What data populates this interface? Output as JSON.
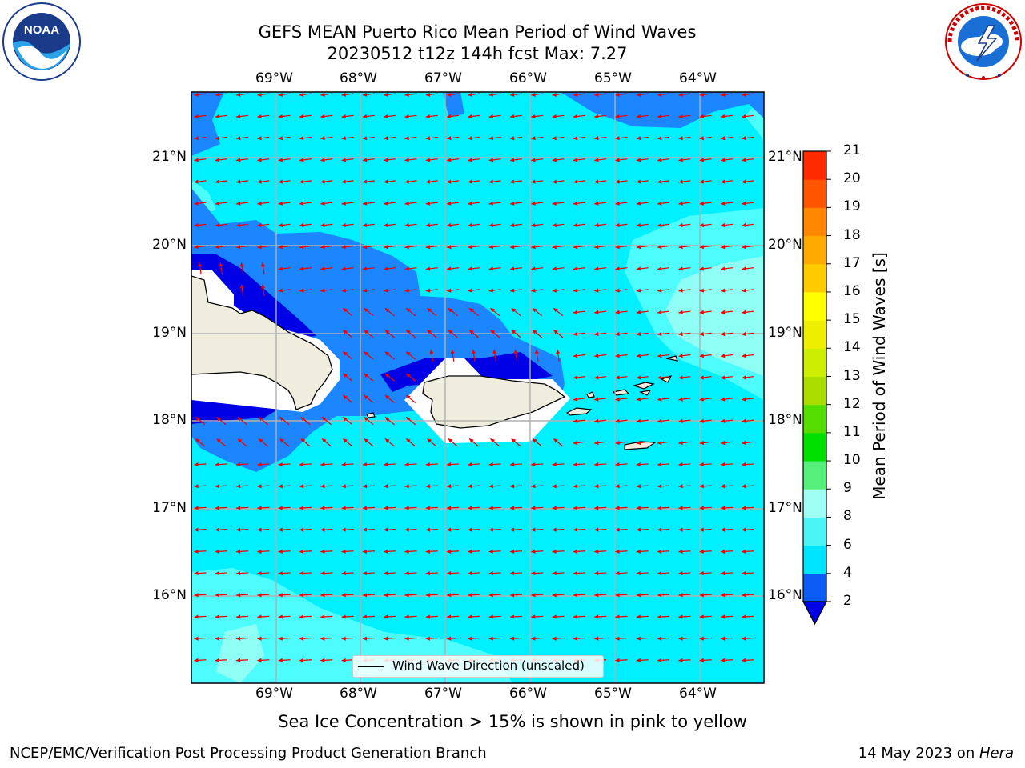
{
  "header": {
    "title_line1": "GEFS MEAN Puerto Rico Mean Period of Wind Waves",
    "title_line2": "20230512 t12z 144h fcst   Max: 7.27"
  },
  "logos": {
    "left": "noaa-logo",
    "right": "nws-logo"
  },
  "axes": {
    "lon_labels": [
      "69°W",
      "68°W",
      "67°W",
      "66°W",
      "65°W",
      "64°W"
    ],
    "lat_labels": [
      "21°N",
      "20°N",
      "19°N",
      "18°N",
      "17°N",
      "16°N"
    ]
  },
  "colorbar": {
    "label": "Mean Period of Wind Waves [s]",
    "ticks": [
      "2",
      "4",
      "6",
      "8",
      "9",
      "10",
      "11",
      "12",
      "13",
      "14",
      "15",
      "16",
      "17",
      "18",
      "19",
      "20",
      "21"
    ],
    "colors": [
      "#0a5cf5",
      "#00e5ff",
      "#4cf5f5",
      "#9ffff5",
      "#55f07a",
      "#00e000",
      "#55dd00",
      "#aadd00",
      "#ccee00",
      "#eeee00",
      "#ffff00",
      "#ffcc00",
      "#ffaa00",
      "#ff8800",
      "#ff5500",
      "#ff2a00"
    ],
    "under_color": "#0000e6"
  },
  "legend": {
    "label": "Wind Wave Direction (unscaled)"
  },
  "subtitle": "Sea Ice Concentration > 15% is shown in pink to yellow",
  "footer": {
    "left": "NCEP/EMC/Verification Post Processing Product Generation Branch",
    "right_prefix": "14 May 2023 on ",
    "right_host": "Hera"
  },
  "colors": {
    "field_main": "#00f0ff",
    "field_light": "#4dfdfd",
    "field_lighter": "#8ffff5",
    "field_mid": "#1b86ff",
    "field_deep": "#0000e6",
    "land": "#efeede",
    "arrow": "#ee0000",
    "grid": "#b0b0b0"
  }
}
